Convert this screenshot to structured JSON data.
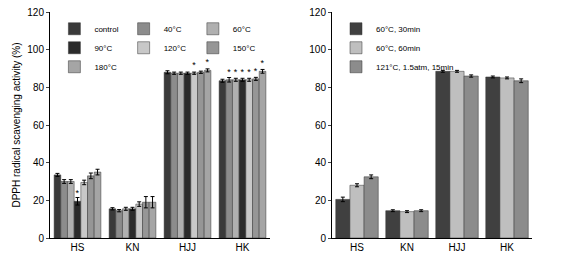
{
  "chart_data": [
    {
      "type": "bar",
      "y_label": "DPPH radical scavenging activity (%)",
      "categories": [
        "HS",
        "KN",
        "HJJ",
        "HK"
      ],
      "series": [
        {
          "name": "control",
          "color": "#3a3a3a",
          "values": [
            33.5,
            15.5,
            88,
            83.5
          ],
          "errors": [
            0.8,
            0.6,
            0.8,
            0.8
          ],
          "annotations": [
            null,
            null,
            null,
            null
          ]
        },
        {
          "name": "40°C",
          "color": "#8c8c8c",
          "values": [
            30,
            14.5,
            87.5,
            84
          ],
          "errors": [
            1,
            0.6,
            0.6,
            1.2
          ],
          "annotations": [
            null,
            null,
            null,
            "*"
          ]
        },
        {
          "name": "60°C",
          "color": "#b0b0b0",
          "values": [
            30,
            15.5,
            87.5,
            84
          ],
          "errors": [
            1,
            0.8,
            0.6,
            0.8
          ],
          "annotations": [
            null,
            null,
            null,
            "*"
          ]
        },
        {
          "name": "90°C",
          "color": "#2b2b2b",
          "values": [
            19.5,
            15.5,
            87.5,
            84
          ],
          "errors": [
            2,
            0.8,
            0.6,
            0.8
          ],
          "annotations": [
            "*",
            null,
            null,
            "*"
          ]
        },
        {
          "name": "120°C",
          "color": "#c8c8c8",
          "values": [
            29.5,
            18,
            87.5,
            84
          ],
          "errors": [
            1.2,
            1.2,
            0.6,
            0.8
          ],
          "annotations": [
            null,
            null,
            "*",
            "*"
          ]
        },
        {
          "name": "150°C",
          "color": "#969696",
          "values": [
            33,
            19,
            88,
            84.5
          ],
          "errors": [
            1.5,
            3,
            0.6,
            0.8
          ],
          "annotations": [
            null,
            null,
            null,
            "*"
          ]
        },
        {
          "name": "180°C",
          "color": "#a5a5a5",
          "values": [
            35,
            19,
            89,
            88.5
          ],
          "errors": [
            1.5,
            3,
            0.8,
            1
          ],
          "annotations": [
            null,
            null,
            "*",
            "*"
          ]
        }
      ],
      "ylim": [
        0,
        120
      ],
      "yticks": [
        0,
        20,
        40,
        60,
        80,
        100,
        120
      ],
      "grid": false,
      "legend": "top left"
    },
    {
      "type": "bar",
      "categories": [
        "HS",
        "KN",
        "HJJ",
        "HK"
      ],
      "series": [
        {
          "name": "60°C, 30min",
          "color": "#404040",
          "values": [
            20.5,
            14.5,
            88.5,
            85.5
          ],
          "errors": [
            1.2,
            0.5,
            0.5,
            0.5
          ]
        },
        {
          "name": "60°C, 60min",
          "color": "#bfbfbf",
          "values": [
            28,
            14,
            88.5,
            85
          ],
          "errors": [
            0.8,
            0.5,
            0.5,
            0.5
          ]
        },
        {
          "name": "121°C, 1.5atm, 15min",
          "color": "#8c8c8c",
          "values": [
            32.5,
            14.5,
            86,
            83.5
          ],
          "errors": [
            1,
            0.5,
            0.6,
            1
          ]
        }
      ],
      "ylim": [
        0,
        120
      ],
      "yticks": [
        0,
        20,
        40,
        60,
        80,
        100,
        120
      ],
      "grid": false,
      "legend": "top left"
    }
  ]
}
